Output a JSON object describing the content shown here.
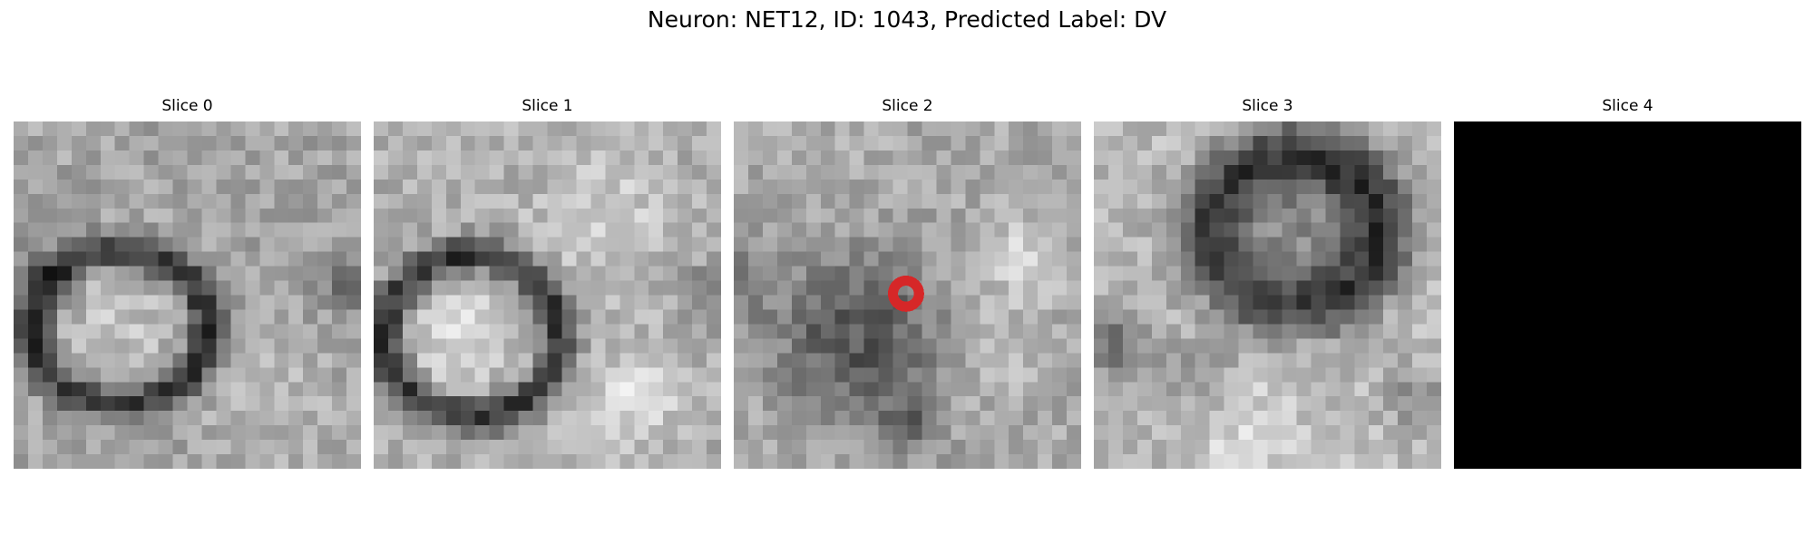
{
  "title": "Neuron: NET12, ID: 1043, Predicted Label: DV",
  "panels": [
    {
      "label": "Slice 0",
      "image": "grayscale EM slice, dark ring cell outline",
      "blank": false
    },
    {
      "label": "Slice 1",
      "image": "grayscale EM slice, dark ring cell outline",
      "blank": false
    },
    {
      "label": "Slice 2",
      "image": "grayscale EM slice, dark irregular cell with marked point",
      "blank": false,
      "marker": {
        "shape": "ring",
        "color": "#d62728"
      }
    },
    {
      "label": "Slice 3",
      "image": "grayscale EM slice, dark oval cell near top",
      "blank": false
    },
    {
      "label": "Slice 4",
      "image": "empty black slice",
      "blank": true
    }
  ],
  "colors": {
    "background": "#ffffff",
    "blank_slice": "#000000",
    "marker": "#d62728"
  }
}
